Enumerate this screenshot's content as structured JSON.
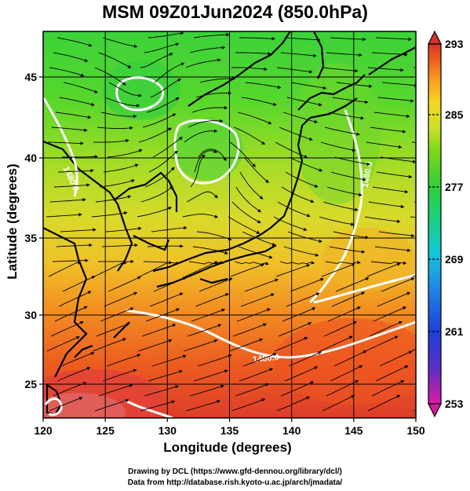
{
  "title": "MSM 09Z01Jun2024 (850.0hPa)",
  "axes": {
    "xlabel": "Longitude (degrees)",
    "ylabel": "Latitude  (degrees)",
    "xticks": [
      "120",
      "125",
      "130",
      "135",
      "140",
      "145",
      "150"
    ],
    "yticks": [
      "25",
      "30",
      "35",
      "40",
      "45"
    ],
    "xlim": [
      120,
      150
    ],
    "ylim": [
      22.5,
      47.5
    ]
  },
  "colorbar": {
    "labels": [
      "293",
      "285",
      "277",
      "269",
      "261",
      "253"
    ],
    "range": [
      253,
      293
    ],
    "colors": [
      "#d81b9e",
      "#5b2fc8",
      "#1e3fd6",
      "#1f86e6",
      "#16c6d6",
      "#19d27a",
      "#2ece3a",
      "#7bd61c",
      "#cde12a",
      "#f5d625",
      "#f79c1f",
      "#ee5a1e",
      "#d8312a"
    ]
  },
  "contour_labels": [
    "1480.0",
    "1480.0",
    "1480.0"
  ],
  "credits": {
    "line1": "Drawing by DCL (https://www.gfd-dennou.org/library/dcl/)",
    "line2": "Data from http://database.rish.kyoto-u.ac.jp/arch/jmadata/"
  }
}
